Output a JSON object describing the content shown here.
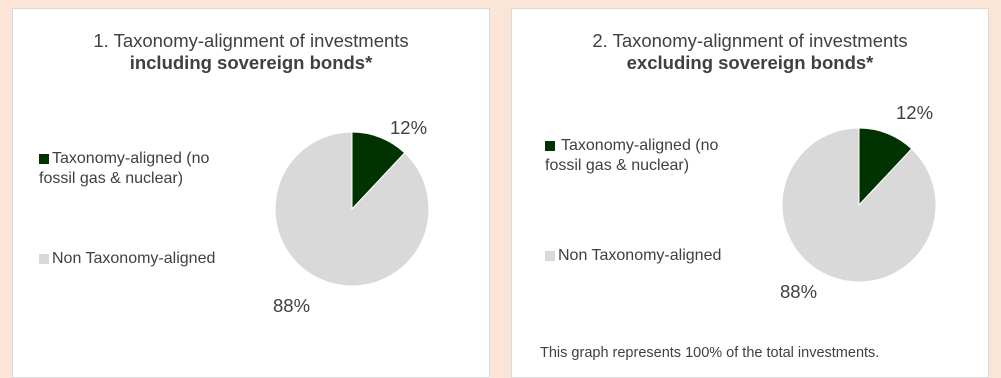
{
  "chart_data": [
    {
      "type": "pie",
      "title": "1. Taxonomy-alignment of investments",
      "subtitle": "including sovereign bonds*",
      "categories": [
        "Taxonomy-aligned (no fossil gas & nuclear)",
        "Non Taxonomy-aligned"
      ],
      "values": [
        12,
        88
      ],
      "labels": [
        "12%",
        "88%"
      ],
      "colors": [
        "#003300",
        "#d9d9d9"
      ],
      "legend": "left",
      "legend_entries": [
        {
          "line1": "Taxonomy-aligned (no",
          "line2": "fossil gas & nuclear)"
        },
        {
          "line1": "Non Taxonomy-aligned"
        }
      ]
    },
    {
      "type": "pie",
      "title": "2. Taxonomy-alignment of investments",
      "subtitle": "excluding sovereign bonds*",
      "categories": [
        "Taxonomy-aligned (no fossil gas & nuclear)",
        "Non Taxonomy-aligned"
      ],
      "values": [
        12,
        88
      ],
      "labels": [
        "12%",
        "88%"
      ],
      "colors": [
        "#003300",
        "#d9d9d9"
      ],
      "legend": "left",
      "legend_entries": [
        {
          "line1": "Taxonomy-aligned (no",
          "line2": "fossil gas & nuclear)"
        },
        {
          "line1": "Non Taxonomy-aligned"
        }
      ],
      "footnote": "This graph represents 100% of the total investments."
    }
  ],
  "colors": {
    "background": "#fbe5d6",
    "panel": "#ffffff",
    "panel_border": "#d9d9d9",
    "text": "#404040"
  }
}
